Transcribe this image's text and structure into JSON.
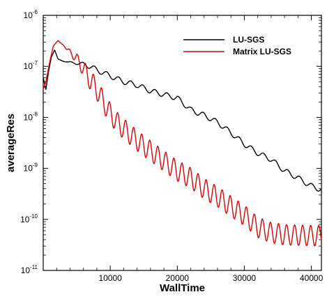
{
  "chart_data": {
    "type": "line",
    "xlabel": "WallTime",
    "ylabel": "averageRes",
    "xlim": [
      0,
      41500
    ],
    "ylim": [
      1e-11,
      1e-06
    ],
    "yscale": "log",
    "x_ticks": [
      10000,
      20000,
      30000,
      40000
    ],
    "x_tick_labels": [
      "10000",
      "20000",
      "30000",
      "40000"
    ],
    "y_ticks": [
      1e-11,
      1e-10,
      1e-09,
      1e-08,
      1e-07,
      1e-06
    ],
    "y_tick_labels": [
      {
        "base": "10",
        "exp": "-11"
      },
      {
        "base": "10",
        "exp": "-10"
      },
      {
        "base": "10",
        "exp": "-9"
      },
      {
        "base": "10",
        "exp": "-8"
      },
      {
        "base": "10",
        "exp": "-7"
      },
      {
        "base": "10",
        "exp": "-6"
      }
    ],
    "legend_position": "top-right",
    "grid": false,
    "series": [
      {
        "name": "LU-SGS",
        "color": "#000000",
        "oscillation": 0.05,
        "period": 1800,
        "points": [
          [
            0,
            6e-08
          ],
          [
            400,
            3.5e-08
          ],
          [
            800,
            8e-08
          ],
          [
            1200,
            1.5e-07
          ],
          [
            1700,
            2.1e-07
          ],
          [
            2200,
            1.4e-07
          ],
          [
            3000,
            1.25e-07
          ],
          [
            4000,
            1.2e-07
          ],
          [
            5000,
            1.15e-07
          ],
          [
            6000,
            1.1e-07
          ],
          [
            7000,
            1e-07
          ],
          [
            8000,
            8.5e-08
          ],
          [
            10000,
            6.5e-08
          ],
          [
            12000,
            5e-08
          ],
          [
            14000,
            4.3e-08
          ],
          [
            16000,
            3.3e-08
          ],
          [
            18000,
            2.8e-08
          ],
          [
            20000,
            2.4e-08
          ],
          [
            22000,
            1.4e-08
          ],
          [
            24000,
            1.1e-08
          ],
          [
            26000,
            8e-09
          ],
          [
            28000,
            5e-09
          ],
          [
            30000,
            3e-09
          ],
          [
            32000,
            2e-09
          ],
          [
            34000,
            1.5e-09
          ],
          [
            36000,
            9e-10
          ],
          [
            38000,
            6.5e-10
          ],
          [
            40000,
            4.5e-10
          ],
          [
            41500,
            3.8e-10
          ]
        ]
      },
      {
        "name": "Matrix LU-SGS",
        "color": "#e00000",
        "oscillation": 0.2,
        "period": 1200,
        "points": [
          [
            0,
            3.5e-08
          ],
          [
            400,
            5e-08
          ],
          [
            900,
            1.1e-07
          ],
          [
            1500,
            2.5e-07
          ],
          [
            2200,
            3.2e-07
          ],
          [
            3000,
            2.6e-07
          ],
          [
            4000,
            1.9e-07
          ],
          [
            5000,
            1.4e-07
          ],
          [
            6000,
            9e-08
          ],
          [
            7000,
            5.5e-08
          ],
          [
            8000,
            3.5e-08
          ],
          [
            9000,
            2e-08
          ],
          [
            10000,
            1.2e-08
          ],
          [
            11000,
            8e-09
          ],
          [
            12000,
            6e-09
          ],
          [
            14000,
            3.5e-09
          ],
          [
            16000,
            2.2e-09
          ],
          [
            18000,
            1.4e-09
          ],
          [
            20000,
            9e-10
          ],
          [
            22000,
            6.5e-10
          ],
          [
            24000,
            4e-10
          ],
          [
            26000,
            2.8e-10
          ],
          [
            28000,
            1.8e-10
          ],
          [
            30000,
            1.2e-10
          ],
          [
            32000,
            7e-11
          ],
          [
            34000,
            5.5e-11
          ],
          [
            36000,
            5e-11
          ],
          [
            38000,
            4.9e-11
          ],
          [
            40000,
            4.8e-11
          ],
          [
            41500,
            4.8e-11
          ]
        ]
      }
    ]
  }
}
